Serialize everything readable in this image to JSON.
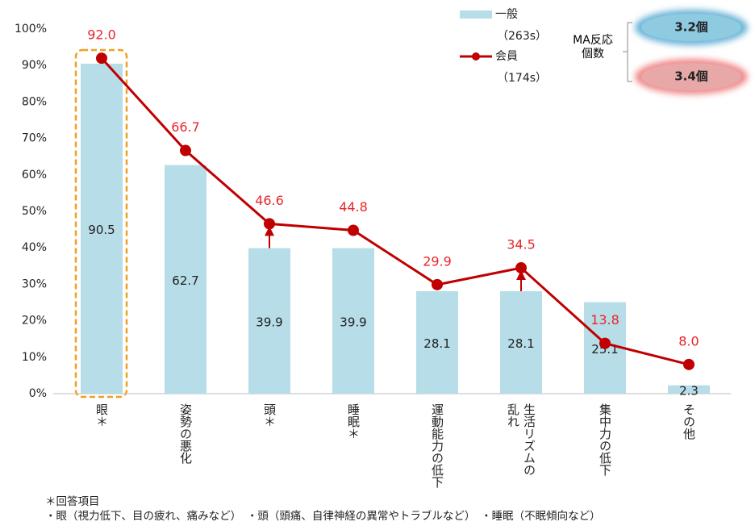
{
  "chart_data": {
    "type": "bar_line",
    "categories": [
      "眼＊",
      "姿勢の悪化",
      "頭＊",
      "睡眠＊",
      "運動能力の低下",
      "生活リズムの\n乱れ",
      "集中力の低下",
      "その他"
    ],
    "series": [
      {
        "name": "一般",
        "sample": "（263s）",
        "type": "bar",
        "color": "#b7dde8",
        "values": [
          90.5,
          62.7,
          39.9,
          39.9,
          28.1,
          28.1,
          25.1,
          2.3
        ]
      },
      {
        "name": "会員",
        "sample": "（174s）",
        "type": "line",
        "color": "#c00000",
        "label_color": "#e8262a",
        "values": [
          92,
          66.7,
          46.6,
          44.8,
          29.9,
          34.5,
          13.8,
          8
        ],
        "value_labels": [
          "92.0",
          "66.7",
          "46.6",
          "44.8",
          "29.9",
          "34.5",
          "13.8",
          "8.0"
        ]
      }
    ],
    "ylim": [
      0,
      100
    ],
    "yticks": [
      {
        "value": 0,
        "label": "0%"
      },
      {
        "value": 10,
        "label": "10%"
      },
      {
        "value": 20,
        "label": "20%"
      },
      {
        "value": 30,
        "label": "30%"
      },
      {
        "value": 40,
        "label": "40%"
      },
      {
        "value": 50,
        "label": "50%"
      },
      {
        "value": 60,
        "label": "60%"
      },
      {
        "value": 70,
        "label": "70%"
      },
      {
        "value": 80,
        "label": "80%"
      },
      {
        "value": 90,
        "label": "90%"
      },
      {
        "value": 100,
        "label": "100%"
      }
    ],
    "ma_label": "MA反応\n個数",
    "ma_values": [
      "3.2個",
      "3.4個"
    ],
    "footnote_title": "＊回答項目",
    "footnote": "・眼（視力低下、目の疲れ、痛みなど）　・頭（頭痛、自律神経の異常やトラブルなど）　・睡眠（不眠傾向など）"
  }
}
